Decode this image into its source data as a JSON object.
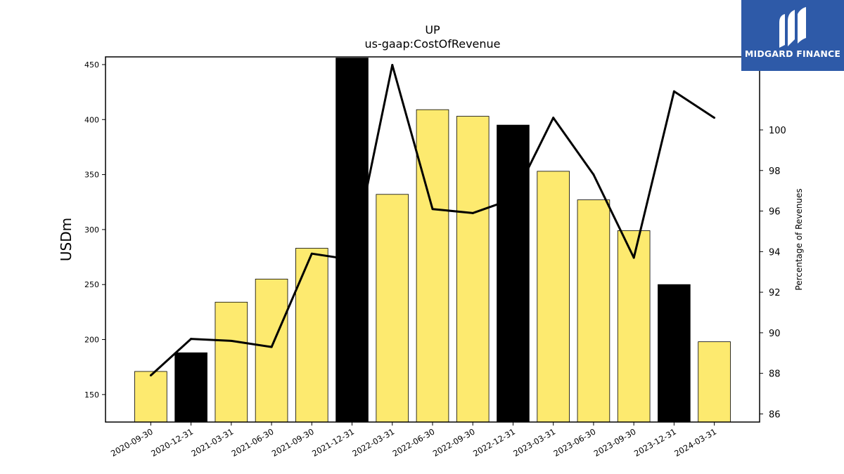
{
  "brand": {
    "name": "MIDGARD FINANCE",
    "bg_color": "#2e5aa8"
  },
  "chart_data": {
    "type": "bar",
    "title": "UP",
    "subtitle": "us-gaap:CostOfRevenue",
    "ylabel": "USDm",
    "y2label": "Percentage of Revenues",
    "categories": [
      "2020-09-30",
      "2020-12-31",
      "2021-03-31",
      "2021-06-30",
      "2021-09-30",
      "2021-12-31",
      "2022-03-31",
      "2022-06-30",
      "2022-09-30",
      "2022-12-31",
      "2023-03-31",
      "2023-06-30",
      "2023-09-30",
      "2023-12-31",
      "2024-03-31"
    ],
    "series": [
      {
        "type": "bar",
        "values": [
          171,
          188,
          234,
          255,
          283,
          456,
          332,
          409,
          403,
          395,
          353,
          327,
          299,
          250,
          198
        ]
      },
      {
        "type": "line",
        "axis": "right",
        "values": [
          87.9,
          89.7,
          89.6,
          89.3,
          93.9,
          93.6,
          103.2,
          96.1,
          95.9,
          96.6,
          100.6,
          97.8,
          93.7,
          101.9,
          100.6
        ]
      }
    ],
    "bar_highlight": [
      false,
      true,
      false,
      false,
      false,
      true,
      false,
      false,
      false,
      true,
      false,
      false,
      false,
      true,
      false
    ],
    "bar_color": "#fdea6f",
    "bar_highlight_color": "#000000",
    "line_color": "#000000",
    "ylim": [
      125,
      457
    ],
    "y2lim": [
      85.6,
      103.6
    ],
    "yticks": [
      150,
      200,
      250,
      300,
      350,
      400,
      450
    ],
    "y2ticks": [
      86,
      88,
      90,
      92,
      94,
      96,
      98,
      100
    ],
    "grid": false,
    "legend": "none"
  }
}
